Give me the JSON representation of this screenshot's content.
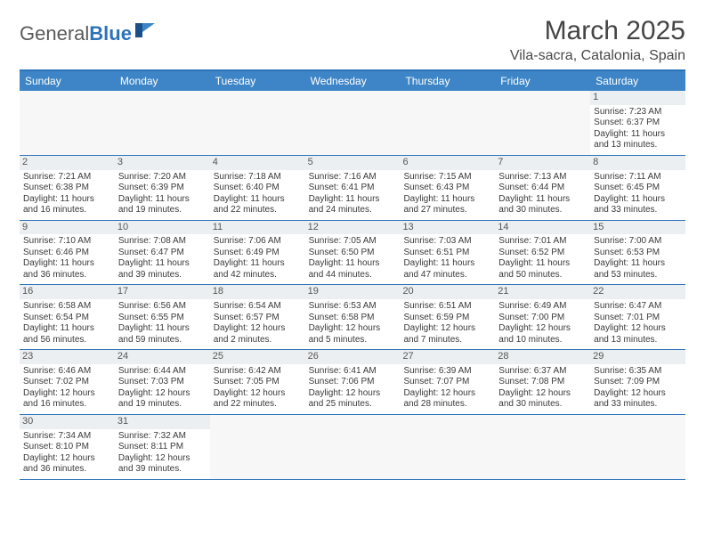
{
  "logo": {
    "part1": "General",
    "part2": "Blue"
  },
  "title": "March 2025",
  "location": "Vila-sacra, Catalonia, Spain",
  "colors": {
    "header_bg": "#3d85c6",
    "border": "#2d73b9",
    "daynum_bg": "#eceff1",
    "text": "#3a3a3a",
    "title": "#454545"
  },
  "weekdays": [
    "Sunday",
    "Monday",
    "Tuesday",
    "Wednesday",
    "Thursday",
    "Friday",
    "Saturday"
  ],
  "weeks": [
    [
      null,
      null,
      null,
      null,
      null,
      null,
      {
        "n": "1",
        "sr": "Sunrise: 7:23 AM",
        "ss": "Sunset: 6:37 PM",
        "d1": "Daylight: 11 hours",
        "d2": "and 13 minutes."
      }
    ],
    [
      {
        "n": "2",
        "sr": "Sunrise: 7:21 AM",
        "ss": "Sunset: 6:38 PM",
        "d1": "Daylight: 11 hours",
        "d2": "and 16 minutes."
      },
      {
        "n": "3",
        "sr": "Sunrise: 7:20 AM",
        "ss": "Sunset: 6:39 PM",
        "d1": "Daylight: 11 hours",
        "d2": "and 19 minutes."
      },
      {
        "n": "4",
        "sr": "Sunrise: 7:18 AM",
        "ss": "Sunset: 6:40 PM",
        "d1": "Daylight: 11 hours",
        "d2": "and 22 minutes."
      },
      {
        "n": "5",
        "sr": "Sunrise: 7:16 AM",
        "ss": "Sunset: 6:41 PM",
        "d1": "Daylight: 11 hours",
        "d2": "and 24 minutes."
      },
      {
        "n": "6",
        "sr": "Sunrise: 7:15 AM",
        "ss": "Sunset: 6:43 PM",
        "d1": "Daylight: 11 hours",
        "d2": "and 27 minutes."
      },
      {
        "n": "7",
        "sr": "Sunrise: 7:13 AM",
        "ss": "Sunset: 6:44 PM",
        "d1": "Daylight: 11 hours",
        "d2": "and 30 minutes."
      },
      {
        "n": "8",
        "sr": "Sunrise: 7:11 AM",
        "ss": "Sunset: 6:45 PM",
        "d1": "Daylight: 11 hours",
        "d2": "and 33 minutes."
      }
    ],
    [
      {
        "n": "9",
        "sr": "Sunrise: 7:10 AM",
        "ss": "Sunset: 6:46 PM",
        "d1": "Daylight: 11 hours",
        "d2": "and 36 minutes."
      },
      {
        "n": "10",
        "sr": "Sunrise: 7:08 AM",
        "ss": "Sunset: 6:47 PM",
        "d1": "Daylight: 11 hours",
        "d2": "and 39 minutes."
      },
      {
        "n": "11",
        "sr": "Sunrise: 7:06 AM",
        "ss": "Sunset: 6:49 PM",
        "d1": "Daylight: 11 hours",
        "d2": "and 42 minutes."
      },
      {
        "n": "12",
        "sr": "Sunrise: 7:05 AM",
        "ss": "Sunset: 6:50 PM",
        "d1": "Daylight: 11 hours",
        "d2": "and 44 minutes."
      },
      {
        "n": "13",
        "sr": "Sunrise: 7:03 AM",
        "ss": "Sunset: 6:51 PM",
        "d1": "Daylight: 11 hours",
        "d2": "and 47 minutes."
      },
      {
        "n": "14",
        "sr": "Sunrise: 7:01 AM",
        "ss": "Sunset: 6:52 PM",
        "d1": "Daylight: 11 hours",
        "d2": "and 50 minutes."
      },
      {
        "n": "15",
        "sr": "Sunrise: 7:00 AM",
        "ss": "Sunset: 6:53 PM",
        "d1": "Daylight: 11 hours",
        "d2": "and 53 minutes."
      }
    ],
    [
      {
        "n": "16",
        "sr": "Sunrise: 6:58 AM",
        "ss": "Sunset: 6:54 PM",
        "d1": "Daylight: 11 hours",
        "d2": "and 56 minutes."
      },
      {
        "n": "17",
        "sr": "Sunrise: 6:56 AM",
        "ss": "Sunset: 6:55 PM",
        "d1": "Daylight: 11 hours",
        "d2": "and 59 minutes."
      },
      {
        "n": "18",
        "sr": "Sunrise: 6:54 AM",
        "ss": "Sunset: 6:57 PM",
        "d1": "Daylight: 12 hours",
        "d2": "and 2 minutes."
      },
      {
        "n": "19",
        "sr": "Sunrise: 6:53 AM",
        "ss": "Sunset: 6:58 PM",
        "d1": "Daylight: 12 hours",
        "d2": "and 5 minutes."
      },
      {
        "n": "20",
        "sr": "Sunrise: 6:51 AM",
        "ss": "Sunset: 6:59 PM",
        "d1": "Daylight: 12 hours",
        "d2": "and 7 minutes."
      },
      {
        "n": "21",
        "sr": "Sunrise: 6:49 AM",
        "ss": "Sunset: 7:00 PM",
        "d1": "Daylight: 12 hours",
        "d2": "and 10 minutes."
      },
      {
        "n": "22",
        "sr": "Sunrise: 6:47 AM",
        "ss": "Sunset: 7:01 PM",
        "d1": "Daylight: 12 hours",
        "d2": "and 13 minutes."
      }
    ],
    [
      {
        "n": "23",
        "sr": "Sunrise: 6:46 AM",
        "ss": "Sunset: 7:02 PM",
        "d1": "Daylight: 12 hours",
        "d2": "and 16 minutes."
      },
      {
        "n": "24",
        "sr": "Sunrise: 6:44 AM",
        "ss": "Sunset: 7:03 PM",
        "d1": "Daylight: 12 hours",
        "d2": "and 19 minutes."
      },
      {
        "n": "25",
        "sr": "Sunrise: 6:42 AM",
        "ss": "Sunset: 7:05 PM",
        "d1": "Daylight: 12 hours",
        "d2": "and 22 minutes."
      },
      {
        "n": "26",
        "sr": "Sunrise: 6:41 AM",
        "ss": "Sunset: 7:06 PM",
        "d1": "Daylight: 12 hours",
        "d2": "and 25 minutes."
      },
      {
        "n": "27",
        "sr": "Sunrise: 6:39 AM",
        "ss": "Sunset: 7:07 PM",
        "d1": "Daylight: 12 hours",
        "d2": "and 28 minutes."
      },
      {
        "n": "28",
        "sr": "Sunrise: 6:37 AM",
        "ss": "Sunset: 7:08 PM",
        "d1": "Daylight: 12 hours",
        "d2": "and 30 minutes."
      },
      {
        "n": "29",
        "sr": "Sunrise: 6:35 AM",
        "ss": "Sunset: 7:09 PM",
        "d1": "Daylight: 12 hours",
        "d2": "and 33 minutes."
      }
    ],
    [
      {
        "n": "30",
        "sr": "Sunrise: 7:34 AM",
        "ss": "Sunset: 8:10 PM",
        "d1": "Daylight: 12 hours",
        "d2": "and 36 minutes."
      },
      {
        "n": "31",
        "sr": "Sunrise: 7:32 AM",
        "ss": "Sunset: 8:11 PM",
        "d1": "Daylight: 12 hours",
        "d2": "and 39 minutes."
      },
      null,
      null,
      null,
      null,
      null
    ]
  ]
}
